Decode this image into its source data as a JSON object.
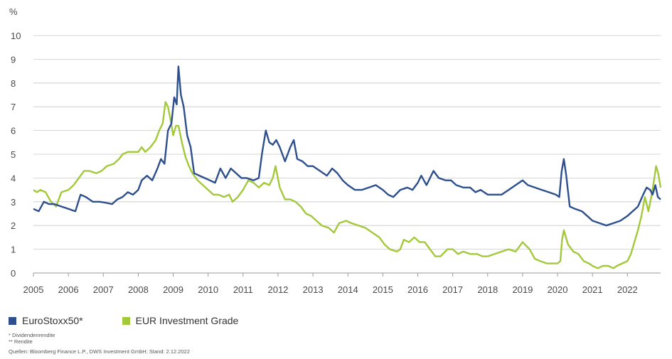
{
  "chart_data": {
    "type": "line",
    "y_unit_label": "%",
    "ylim": [
      0,
      10
    ],
    "y_ticks": [
      "0",
      "1",
      "2",
      "3",
      "4",
      "5",
      "6",
      "7",
      "8",
      "9",
      "10"
    ],
    "xlim": [
      2005.0,
      2022.95
    ],
    "x_ticks": [
      "2005",
      "2006",
      "2007",
      "2008",
      "2009",
      "2010",
      "2011",
      "2012",
      "2013",
      "2014",
      "2015",
      "2016",
      "2017",
      "2018",
      "2019",
      "2020",
      "2021",
      "2022"
    ],
    "grid": "horizontal",
    "legend_position": "bottom-left",
    "series": [
      {
        "name": "EuroStoxx50*",
        "color": "#2d4f8e",
        "points": [
          [
            2005.0,
            2.7
          ],
          [
            2005.15,
            2.6
          ],
          [
            2005.3,
            3.0
          ],
          [
            2005.45,
            2.9
          ],
          [
            2005.6,
            2.9
          ],
          [
            2005.8,
            2.8
          ],
          [
            2006.0,
            2.7
          ],
          [
            2006.2,
            2.6
          ],
          [
            2006.35,
            3.3
          ],
          [
            2006.5,
            3.2
          ],
          [
            2006.7,
            3.0
          ],
          [
            2006.9,
            3.0
          ],
          [
            2007.1,
            2.95
          ],
          [
            2007.25,
            2.9
          ],
          [
            2007.4,
            3.1
          ],
          [
            2007.55,
            3.2
          ],
          [
            2007.7,
            3.4
          ],
          [
            2007.85,
            3.3
          ],
          [
            2008.0,
            3.5
          ],
          [
            2008.1,
            3.9
          ],
          [
            2008.25,
            4.1
          ],
          [
            2008.4,
            3.9
          ],
          [
            2008.55,
            4.4
          ],
          [
            2008.65,
            4.8
          ],
          [
            2008.75,
            4.6
          ],
          [
            2008.85,
            6.0
          ],
          [
            2008.95,
            6.3
          ],
          [
            2009.03,
            7.4
          ],
          [
            2009.1,
            7.1
          ],
          [
            2009.15,
            8.7
          ],
          [
            2009.22,
            7.5
          ],
          [
            2009.3,
            7.0
          ],
          [
            2009.4,
            5.8
          ],
          [
            2009.5,
            5.3
          ],
          [
            2009.6,
            4.2
          ],
          [
            2009.75,
            4.1
          ],
          [
            2009.9,
            4.0
          ],
          [
            2010.05,
            3.9
          ],
          [
            2010.2,
            3.8
          ],
          [
            2010.35,
            4.4
          ],
          [
            2010.5,
            4.0
          ],
          [
            2010.65,
            4.4
          ],
          [
            2010.8,
            4.2
          ],
          [
            2010.95,
            4.0
          ],
          [
            2011.1,
            4.0
          ],
          [
            2011.3,
            3.9
          ],
          [
            2011.45,
            4.0
          ],
          [
            2011.55,
            5.1
          ],
          [
            2011.65,
            6.0
          ],
          [
            2011.75,
            5.5
          ],
          [
            2011.85,
            5.4
          ],
          [
            2011.95,
            5.6
          ],
          [
            2012.05,
            5.3
          ],
          [
            2012.2,
            4.7
          ],
          [
            2012.35,
            5.3
          ],
          [
            2012.45,
            5.6
          ],
          [
            2012.55,
            4.8
          ],
          [
            2012.7,
            4.7
          ],
          [
            2012.85,
            4.5
          ],
          [
            2013.0,
            4.5
          ],
          [
            2013.2,
            4.3
          ],
          [
            2013.4,
            4.1
          ],
          [
            2013.55,
            4.4
          ],
          [
            2013.7,
            4.2
          ],
          [
            2013.85,
            3.9
          ],
          [
            2014.0,
            3.7
          ],
          [
            2014.2,
            3.5
          ],
          [
            2014.4,
            3.5
          ],
          [
            2014.6,
            3.6
          ],
          [
            2014.8,
            3.7
          ],
          [
            2015.0,
            3.5
          ],
          [
            2015.15,
            3.3
          ],
          [
            2015.3,
            3.2
          ],
          [
            2015.5,
            3.5
          ],
          [
            2015.7,
            3.6
          ],
          [
            2015.85,
            3.5
          ],
          [
            2016.0,
            3.8
          ],
          [
            2016.1,
            4.1
          ],
          [
            2016.25,
            3.7
          ],
          [
            2016.45,
            4.3
          ],
          [
            2016.6,
            4.0
          ],
          [
            2016.8,
            3.9
          ],
          [
            2016.95,
            3.9
          ],
          [
            2017.1,
            3.7
          ],
          [
            2017.3,
            3.6
          ],
          [
            2017.5,
            3.6
          ],
          [
            2017.65,
            3.4
          ],
          [
            2017.8,
            3.5
          ],
          [
            2018.0,
            3.3
          ],
          [
            2018.2,
            3.3
          ],
          [
            2018.4,
            3.3
          ],
          [
            2018.6,
            3.5
          ],
          [
            2018.8,
            3.7
          ],
          [
            2019.0,
            3.9
          ],
          [
            2019.15,
            3.7
          ],
          [
            2019.35,
            3.6
          ],
          [
            2019.55,
            3.5
          ],
          [
            2019.75,
            3.4
          ],
          [
            2019.95,
            3.3
          ],
          [
            2020.05,
            3.2
          ],
          [
            2020.12,
            4.3
          ],
          [
            2020.18,
            4.8
          ],
          [
            2020.25,
            4.1
          ],
          [
            2020.35,
            2.8
          ],
          [
            2020.5,
            2.7
          ],
          [
            2020.7,
            2.6
          ],
          [
            2020.85,
            2.4
          ],
          [
            2021.0,
            2.2
          ],
          [
            2021.2,
            2.1
          ],
          [
            2021.4,
            2.0
          ],
          [
            2021.6,
            2.1
          ],
          [
            2021.8,
            2.2
          ],
          [
            2022.0,
            2.4
          ],
          [
            2022.15,
            2.6
          ],
          [
            2022.3,
            2.8
          ],
          [
            2022.45,
            3.3
          ],
          [
            2022.55,
            3.6
          ],
          [
            2022.65,
            3.5
          ],
          [
            2022.72,
            3.3
          ],
          [
            2022.8,
            3.7
          ],
          [
            2022.87,
            3.2
          ],
          [
            2022.95,
            3.1
          ]
        ]
      },
      {
        "name": "EUR Investment Grade",
        "color": "#a3c93a",
        "points": [
          [
            2005.0,
            3.5
          ],
          [
            2005.1,
            3.4
          ],
          [
            2005.2,
            3.5
          ],
          [
            2005.35,
            3.4
          ],
          [
            2005.5,
            3.0
          ],
          [
            2005.65,
            2.8
          ],
          [
            2005.8,
            3.4
          ],
          [
            2006.0,
            3.5
          ],
          [
            2006.15,
            3.7
          ],
          [
            2006.3,
            4.0
          ],
          [
            2006.45,
            4.3
          ],
          [
            2006.6,
            4.3
          ],
          [
            2006.8,
            4.2
          ],
          [
            2006.95,
            4.3
          ],
          [
            2007.1,
            4.5
          ],
          [
            2007.3,
            4.6
          ],
          [
            2007.45,
            4.8
          ],
          [
            2007.55,
            5.0
          ],
          [
            2007.7,
            5.1
          ],
          [
            2007.85,
            5.1
          ],
          [
            2008.0,
            5.1
          ],
          [
            2008.1,
            5.3
          ],
          [
            2008.2,
            5.1
          ],
          [
            2008.35,
            5.3
          ],
          [
            2008.5,
            5.6
          ],
          [
            2008.6,
            6.0
          ],
          [
            2008.7,
            6.3
          ],
          [
            2008.78,
            7.2
          ],
          [
            2008.85,
            7.0
          ],
          [
            2008.92,
            6.5
          ],
          [
            2009.0,
            5.8
          ],
          [
            2009.08,
            6.2
          ],
          [
            2009.15,
            6.2
          ],
          [
            2009.25,
            5.5
          ],
          [
            2009.35,
            4.9
          ],
          [
            2009.45,
            4.5
          ],
          [
            2009.55,
            4.2
          ],
          [
            2009.7,
            3.9
          ],
          [
            2009.85,
            3.7
          ],
          [
            2010.0,
            3.5
          ],
          [
            2010.15,
            3.3
          ],
          [
            2010.3,
            3.3
          ],
          [
            2010.45,
            3.2
          ],
          [
            2010.6,
            3.3
          ],
          [
            2010.7,
            3.0
          ],
          [
            2010.85,
            3.2
          ],
          [
            2011.0,
            3.5
          ],
          [
            2011.15,
            3.9
          ],
          [
            2011.3,
            3.8
          ],
          [
            2011.45,
            3.6
          ],
          [
            2011.6,
            3.8
          ],
          [
            2011.75,
            3.7
          ],
          [
            2011.85,
            4.0
          ],
          [
            2011.93,
            4.5
          ],
          [
            2012.05,
            3.6
          ],
          [
            2012.2,
            3.1
          ],
          [
            2012.35,
            3.1
          ],
          [
            2012.5,
            3.0
          ],
          [
            2012.65,
            2.8
          ],
          [
            2012.8,
            2.5
          ],
          [
            2012.95,
            2.4
          ],
          [
            2013.1,
            2.2
          ],
          [
            2013.25,
            2.0
          ],
          [
            2013.45,
            1.9
          ],
          [
            2013.6,
            1.7
          ],
          [
            2013.75,
            2.1
          ],
          [
            2013.95,
            2.2
          ],
          [
            2014.1,
            2.1
          ],
          [
            2014.3,
            2.0
          ],
          [
            2014.5,
            1.9
          ],
          [
            2014.7,
            1.7
          ],
          [
            2014.9,
            1.5
          ],
          [
            2015.05,
            1.2
          ],
          [
            2015.2,
            1.0
          ],
          [
            2015.4,
            0.9
          ],
          [
            2015.5,
            1.0
          ],
          [
            2015.6,
            1.4
          ],
          [
            2015.75,
            1.3
          ],
          [
            2015.9,
            1.5
          ],
          [
            2016.05,
            1.3
          ],
          [
            2016.2,
            1.3
          ],
          [
            2016.35,
            1.0
          ],
          [
            2016.5,
            0.7
          ],
          [
            2016.65,
            0.7
          ],
          [
            2016.85,
            1.0
          ],
          [
            2017.0,
            1.0
          ],
          [
            2017.15,
            0.8
          ],
          [
            2017.3,
            0.9
          ],
          [
            2017.5,
            0.8
          ],
          [
            2017.7,
            0.8
          ],
          [
            2017.85,
            0.7
          ],
          [
            2018.0,
            0.7
          ],
          [
            2018.2,
            0.8
          ],
          [
            2018.4,
            0.9
          ],
          [
            2018.6,
            1.0
          ],
          [
            2018.8,
            0.9
          ],
          [
            2019.0,
            1.3
          ],
          [
            2019.2,
            1.0
          ],
          [
            2019.35,
            0.6
          ],
          [
            2019.5,
            0.5
          ],
          [
            2019.7,
            0.4
          ],
          [
            2019.9,
            0.4
          ],
          [
            2020.0,
            0.4
          ],
          [
            2020.08,
            0.5
          ],
          [
            2020.13,
            1.4
          ],
          [
            2020.18,
            1.8
          ],
          [
            2020.3,
            1.2
          ],
          [
            2020.45,
            0.9
          ],
          [
            2020.6,
            0.8
          ],
          [
            2020.75,
            0.5
          ],
          [
            2020.9,
            0.4
          ],
          [
            2021.0,
            0.3
          ],
          [
            2021.15,
            0.2
          ],
          [
            2021.3,
            0.3
          ],
          [
            2021.45,
            0.3
          ],
          [
            2021.6,
            0.2
          ],
          [
            2021.7,
            0.3
          ],
          [
            2021.85,
            0.4
          ],
          [
            2022.0,
            0.5
          ],
          [
            2022.1,
            0.8
          ],
          [
            2022.2,
            1.3
          ],
          [
            2022.3,
            1.8
          ],
          [
            2022.4,
            2.4
          ],
          [
            2022.5,
            3.2
          ],
          [
            2022.6,
            2.6
          ],
          [
            2022.67,
            3.1
          ],
          [
            2022.75,
            3.8
          ],
          [
            2022.82,
            4.5
          ],
          [
            2022.88,
            4.2
          ],
          [
            2022.95,
            3.6
          ]
        ]
      }
    ]
  },
  "legend": {
    "items": [
      {
        "label": "EuroStoxx50*",
        "color": "#2d4f8e"
      },
      {
        "label": "EUR Investment Grade",
        "color": "#a3c93a"
      }
    ]
  },
  "footnotes": {
    "note1": "* Dividendenrendite",
    "note2": "** Rendite"
  },
  "source": "Quellen: Bloomberg Finance L.P., DWS Investment GmbH; Stand: 2.12.2022"
}
